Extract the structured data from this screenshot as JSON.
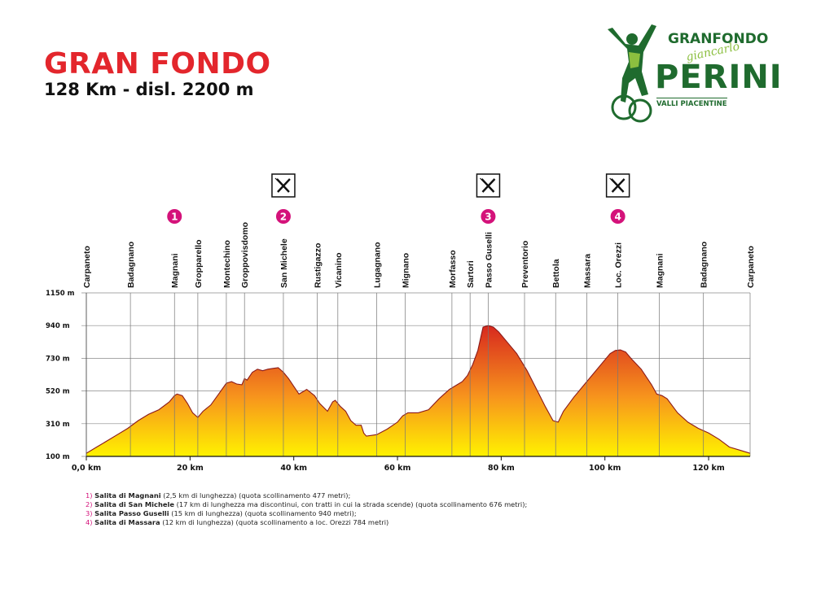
{
  "header": {
    "title": "GRAN FONDO",
    "subtitle": "128 Km - disl. 2200 m"
  },
  "logo": {
    "top": "GRANFONDO",
    "script": "giancarlo",
    "main": "PERINI",
    "sub": "VALLI PIACENTINE"
  },
  "colors": {
    "title_red": "#e3262c",
    "badge_magenta": "#d4127a",
    "logo_green": "#1f6b2e",
    "fill_low": "#fff200",
    "fill_mid": "#f7941d",
    "fill_high": "#d7261e"
  },
  "chart_data": {
    "type": "area",
    "xlabel": "",
    "ylabel": "",
    "xlim": [
      0,
      128
    ],
    "ylim": [
      100,
      1150
    ],
    "x_ticks": [
      0,
      20,
      40,
      60,
      80,
      100,
      120
    ],
    "x_tick_labels": [
      "0,0 km",
      "20 km",
      "40 km",
      "60 km",
      "80 km",
      "100 km",
      "120 km"
    ],
    "y_ticks": [
      100,
      310,
      520,
      730,
      940,
      1150
    ],
    "y_tick_labels": [
      "100 m",
      "310 m",
      "520 m",
      "730 m",
      "940 m",
      "1150 m"
    ],
    "grid": "horizontal",
    "series": [
      {
        "x": [
          0,
          2,
          4,
          6,
          8,
          10,
          12,
          14,
          16,
          17,
          17.5,
          18.5,
          19.5,
          20.5,
          21.5,
          22.5,
          24,
          25.5,
          27,
          28,
          29,
          30,
          30.5,
          31,
          32,
          33,
          34,
          35,
          36,
          37,
          38,
          39,
          40,
          41,
          42,
          42.5,
          44,
          45,
          46.5,
          47.5,
          48,
          49,
          50,
          51,
          52,
          53,
          53.5,
          54,
          55,
          56,
          58,
          60,
          61,
          62,
          64,
          66,
          68,
          70,
          71.5,
          72.5,
          73.5,
          74.5,
          75.5,
          76.5,
          77.5,
          78.5,
          79.5,
          81,
          83,
          85,
          87,
          88.5,
          90,
          91,
          92,
          94,
          96,
          98,
          100,
          101,
          102,
          103,
          104,
          105,
          107,
          109,
          110,
          111,
          112,
          114,
          116,
          118,
          120,
          122,
          124,
          126,
          128
        ],
        "values": [
          120,
          160,
          200,
          240,
          280,
          330,
          370,
          400,
          450,
          490,
          500,
          490,
          440,
          380,
          350,
          390,
          430,
          500,
          570,
          580,
          565,
          560,
          600,
          590,
          640,
          660,
          650,
          660,
          665,
          670,
          640,
          600,
          550,
          500,
          520,
          530,
          490,
          440,
          390,
          450,
          460,
          420,
          390,
          330,
          300,
          300,
          250,
          230,
          235,
          240,
          275,
          320,
          360,
          380,
          380,
          400,
          470,
          530,
          560,
          580,
          620,
          690,
          780,
          930,
          940,
          930,
          900,
          840,
          760,
          650,
          520,
          420,
          330,
          320,
          390,
          480,
          560,
          640,
          720,
          760,
          780,
          784,
          770,
          730,
          660,
          560,
          500,
          490,
          470,
          380,
          320,
          280,
          250,
          210,
          160,
          140,
          120
        ]
      }
    ],
    "locations": [
      {
        "name": "Carpaneto",
        "km": 0
      },
      {
        "name": "Badagnano",
        "km": 8.5
      },
      {
        "name": "Magnani",
        "km": 17
      },
      {
        "name": "Gropparello",
        "km": 21.5
      },
      {
        "name": "Montechino",
        "km": 27
      },
      {
        "name": "Groppovisdomo",
        "km": 30.5
      },
      {
        "name": "San Michele",
        "km": 38
      },
      {
        "name": "Rustigazzo",
        "km": 44.5
      },
      {
        "name": "Vicanino",
        "km": 48.5
      },
      {
        "name": "Lugagnano",
        "km": 56
      },
      {
        "name": "Mignano",
        "km": 61.5
      },
      {
        "name": "Morfasso",
        "km": 70.5
      },
      {
        "name": "Sartori",
        "km": 74
      },
      {
        "name": "Passo Guselli",
        "km": 77.5
      },
      {
        "name": "Preventorio",
        "km": 84.5
      },
      {
        "name": "Bettola",
        "km": 90.5
      },
      {
        "name": "Massara",
        "km": 96.5
      },
      {
        "name": "Loc. Orezzi",
        "km": 102.5
      },
      {
        "name": "Magnani",
        "km": 110.5
      },
      {
        "name": "Badagnano",
        "km": 119
      },
      {
        "name": "Carpaneto",
        "km": 128
      }
    ],
    "climb_badges": [
      {
        "label": "1",
        "km": 17,
        "food": false
      },
      {
        "label": "2",
        "km": 38,
        "food": true
      },
      {
        "label": "3",
        "km": 77.5,
        "food": true
      },
      {
        "label": "4",
        "km": 102.5,
        "food": true
      }
    ]
  },
  "notes": [
    {
      "num": "1)",
      "name": "Salita di Magnani",
      "text": " (2,5 km di lunghezza) (quota scollinamento 477 metri);"
    },
    {
      "num": "2)",
      "name": "Salita di San Michele",
      "text": " (17 km di lunghezza ma discontinui, con tratti in cui la strada scende) (quota scollinamento 676 metri);"
    },
    {
      "num": "3)",
      "name": "Salita Passo Guselli",
      "text": " (15 km di lunghezza) (quota scollinamento 940 metri);"
    },
    {
      "num": "4)",
      "name": "Salita di Massara",
      "text": " (12 km di lunghezza) (quota scollinamento a loc. Orezzi 784 metri)"
    }
  ]
}
